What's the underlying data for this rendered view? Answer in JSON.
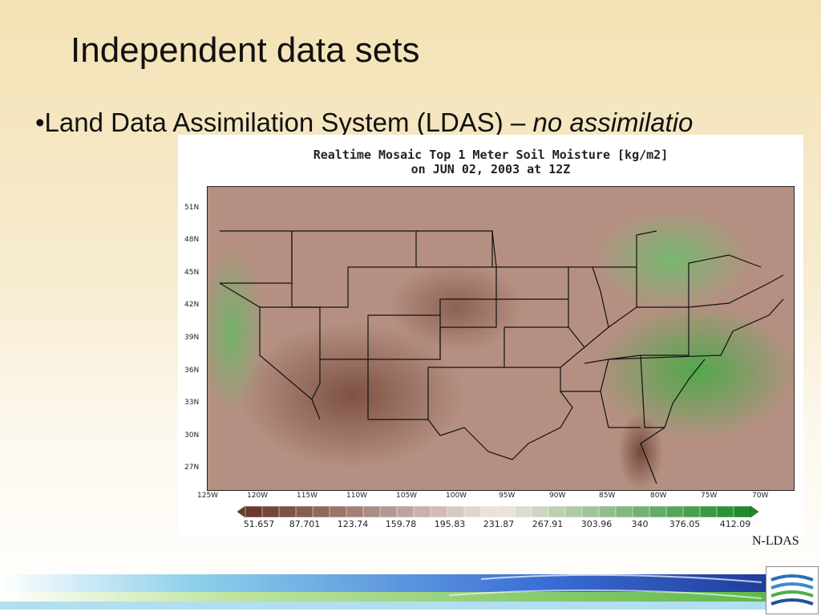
{
  "slide": {
    "title": "Independent data sets",
    "bullet_prefix": "•Land Data Assimilation System (LDAS) – ",
    "bullet_italic": "no assimilatio",
    "credit": "N-LDAS"
  },
  "figure": {
    "title_line1": "Realtime Mosaic Top 1 Meter Soil Moisture [kg/m2]",
    "title_line2": "on JUN 02, 2003 at 12Z",
    "lat_labels": [
      "51N",
      "48N",
      "45N",
      "42N",
      "39N",
      "36N",
      "33N",
      "30N",
      "27N"
    ],
    "lon_labels": [
      "125W",
      "120W",
      "115W",
      "110W",
      "105W",
      "100W",
      "95W",
      "90W",
      "85W",
      "80W",
      "75W",
      "70W"
    ],
    "colorbar_labels": [
      "51.657",
      "87.701",
      "123.74",
      "159.78",
      "195.83",
      "231.87",
      "267.91",
      "303.96",
      "340",
      "376.05",
      "412.09"
    ]
  },
  "colors": {
    "dry": "#6b3a2e",
    "mid": "#f0e6e0",
    "wet": "#1e8c2a"
  }
}
